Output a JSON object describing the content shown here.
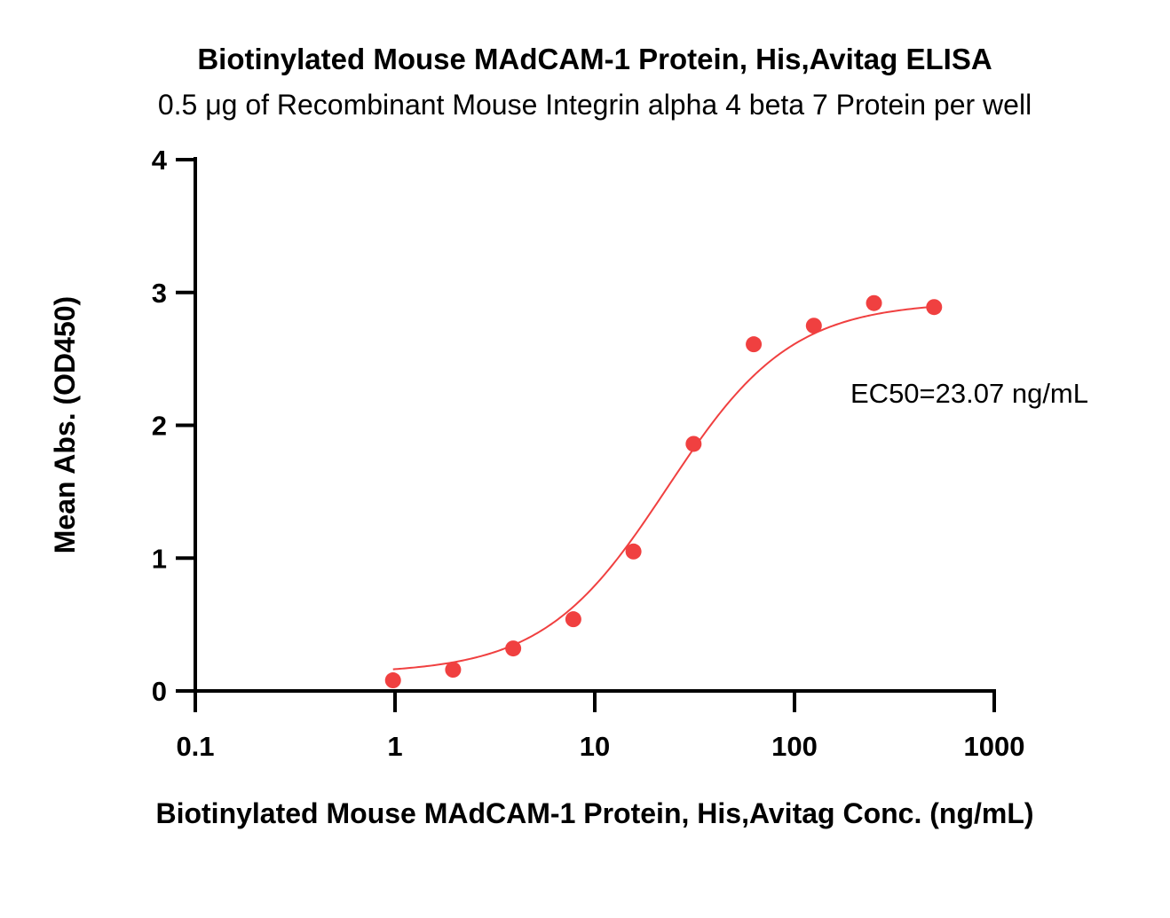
{
  "chart_data": {
    "type": "scatter",
    "title": "Biotinylated Mouse MAdCAM-1 Protein, His,Avitag ELISA",
    "subtitle": "0.5 μg of Recombinant Mouse Integrin alpha 4 beta 7 Protein per well",
    "xlabel": "Biotinylated Mouse MAdCAM-1 Protein, His,Avitag Conc. (ng/mL)",
    "ylabel": "Mean Abs. (OD450)",
    "xscale": "log",
    "xlim": [
      0.1,
      1000
    ],
    "ylim": [
      0,
      4
    ],
    "x_ticks": [
      0.1,
      1,
      10,
      100,
      1000
    ],
    "x_tick_labels": [
      "0.1",
      "1",
      "10",
      "100",
      "1000"
    ],
    "y_ticks": [
      0,
      1,
      2,
      3,
      4
    ],
    "y_tick_labels": [
      "0",
      "1",
      "2",
      "3",
      "4"
    ],
    "grid": false,
    "series": [
      {
        "color": "#f04040",
        "x": [
          0.977,
          1.953,
          3.906,
          7.813,
          15.625,
          31.25,
          62.5,
          125,
          250,
          500
        ],
        "y": [
          0.08,
          0.16,
          0.32,
          0.54,
          1.05,
          1.86,
          2.61,
          2.75,
          2.92,
          2.89
        ]
      }
    ],
    "fit": {
      "model": "4PL",
      "color": "#f04040",
      "bottom": 0.13,
      "top": 2.93,
      "ec50": 23.07,
      "hill": 1.4,
      "x_range": [
        0.977,
        500
      ]
    },
    "annotation": "EC50=23.07 ng/mL"
  }
}
